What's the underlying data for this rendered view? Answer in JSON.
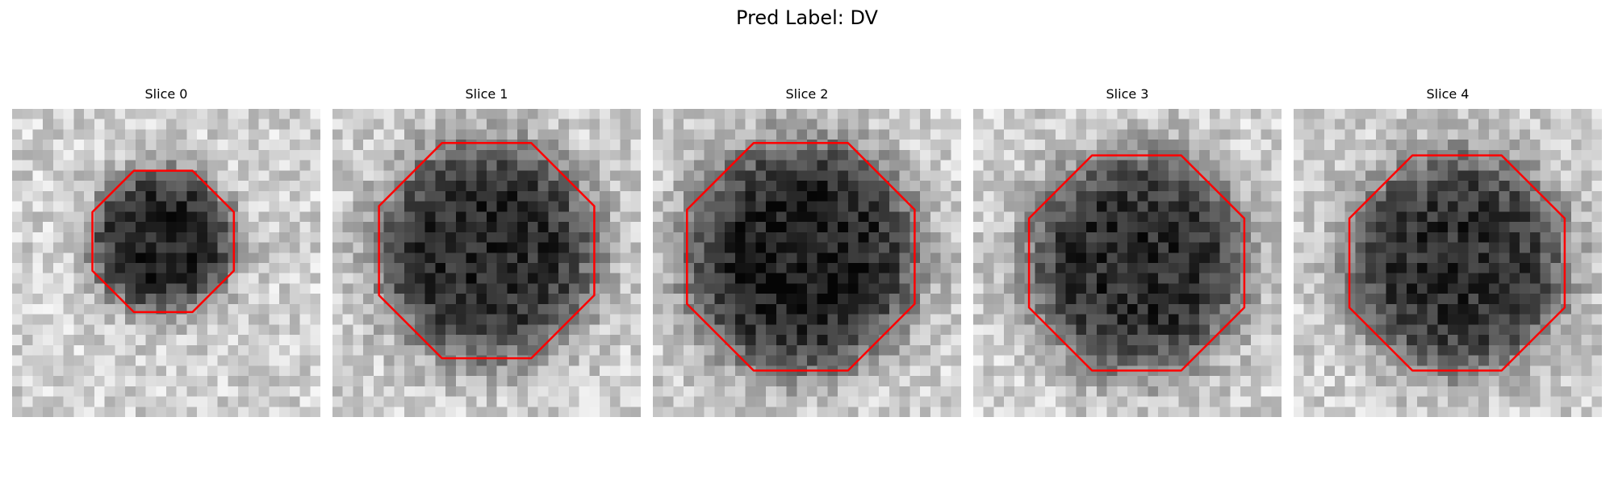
{
  "figure": {
    "title": "Pred Label: DV",
    "contour_color": "#ff0000"
  },
  "panels": [
    {
      "title": "Slice 0",
      "blob_center": [
        0.49,
        0.43
      ],
      "blob_radius": 0.23,
      "blob_darkness": 0.82,
      "seed": 11
    },
    {
      "title": "Slice 1",
      "blob_center": [
        0.5,
        0.46
      ],
      "blob_radius": 0.35,
      "blob_darkness": 0.78,
      "seed": 23
    },
    {
      "title": "Slice 2",
      "blob_center": [
        0.48,
        0.48
      ],
      "blob_radius": 0.37,
      "blob_darkness": 0.84,
      "seed": 37
    },
    {
      "title": "Slice 3",
      "blob_center": [
        0.53,
        0.5
      ],
      "blob_radius": 0.35,
      "blob_darkness": 0.78,
      "seed": 41
    },
    {
      "title": "Slice 4",
      "blob_center": [
        0.53,
        0.5
      ],
      "blob_radius": 0.35,
      "blob_darkness": 0.76,
      "seed": 53
    }
  ]
}
